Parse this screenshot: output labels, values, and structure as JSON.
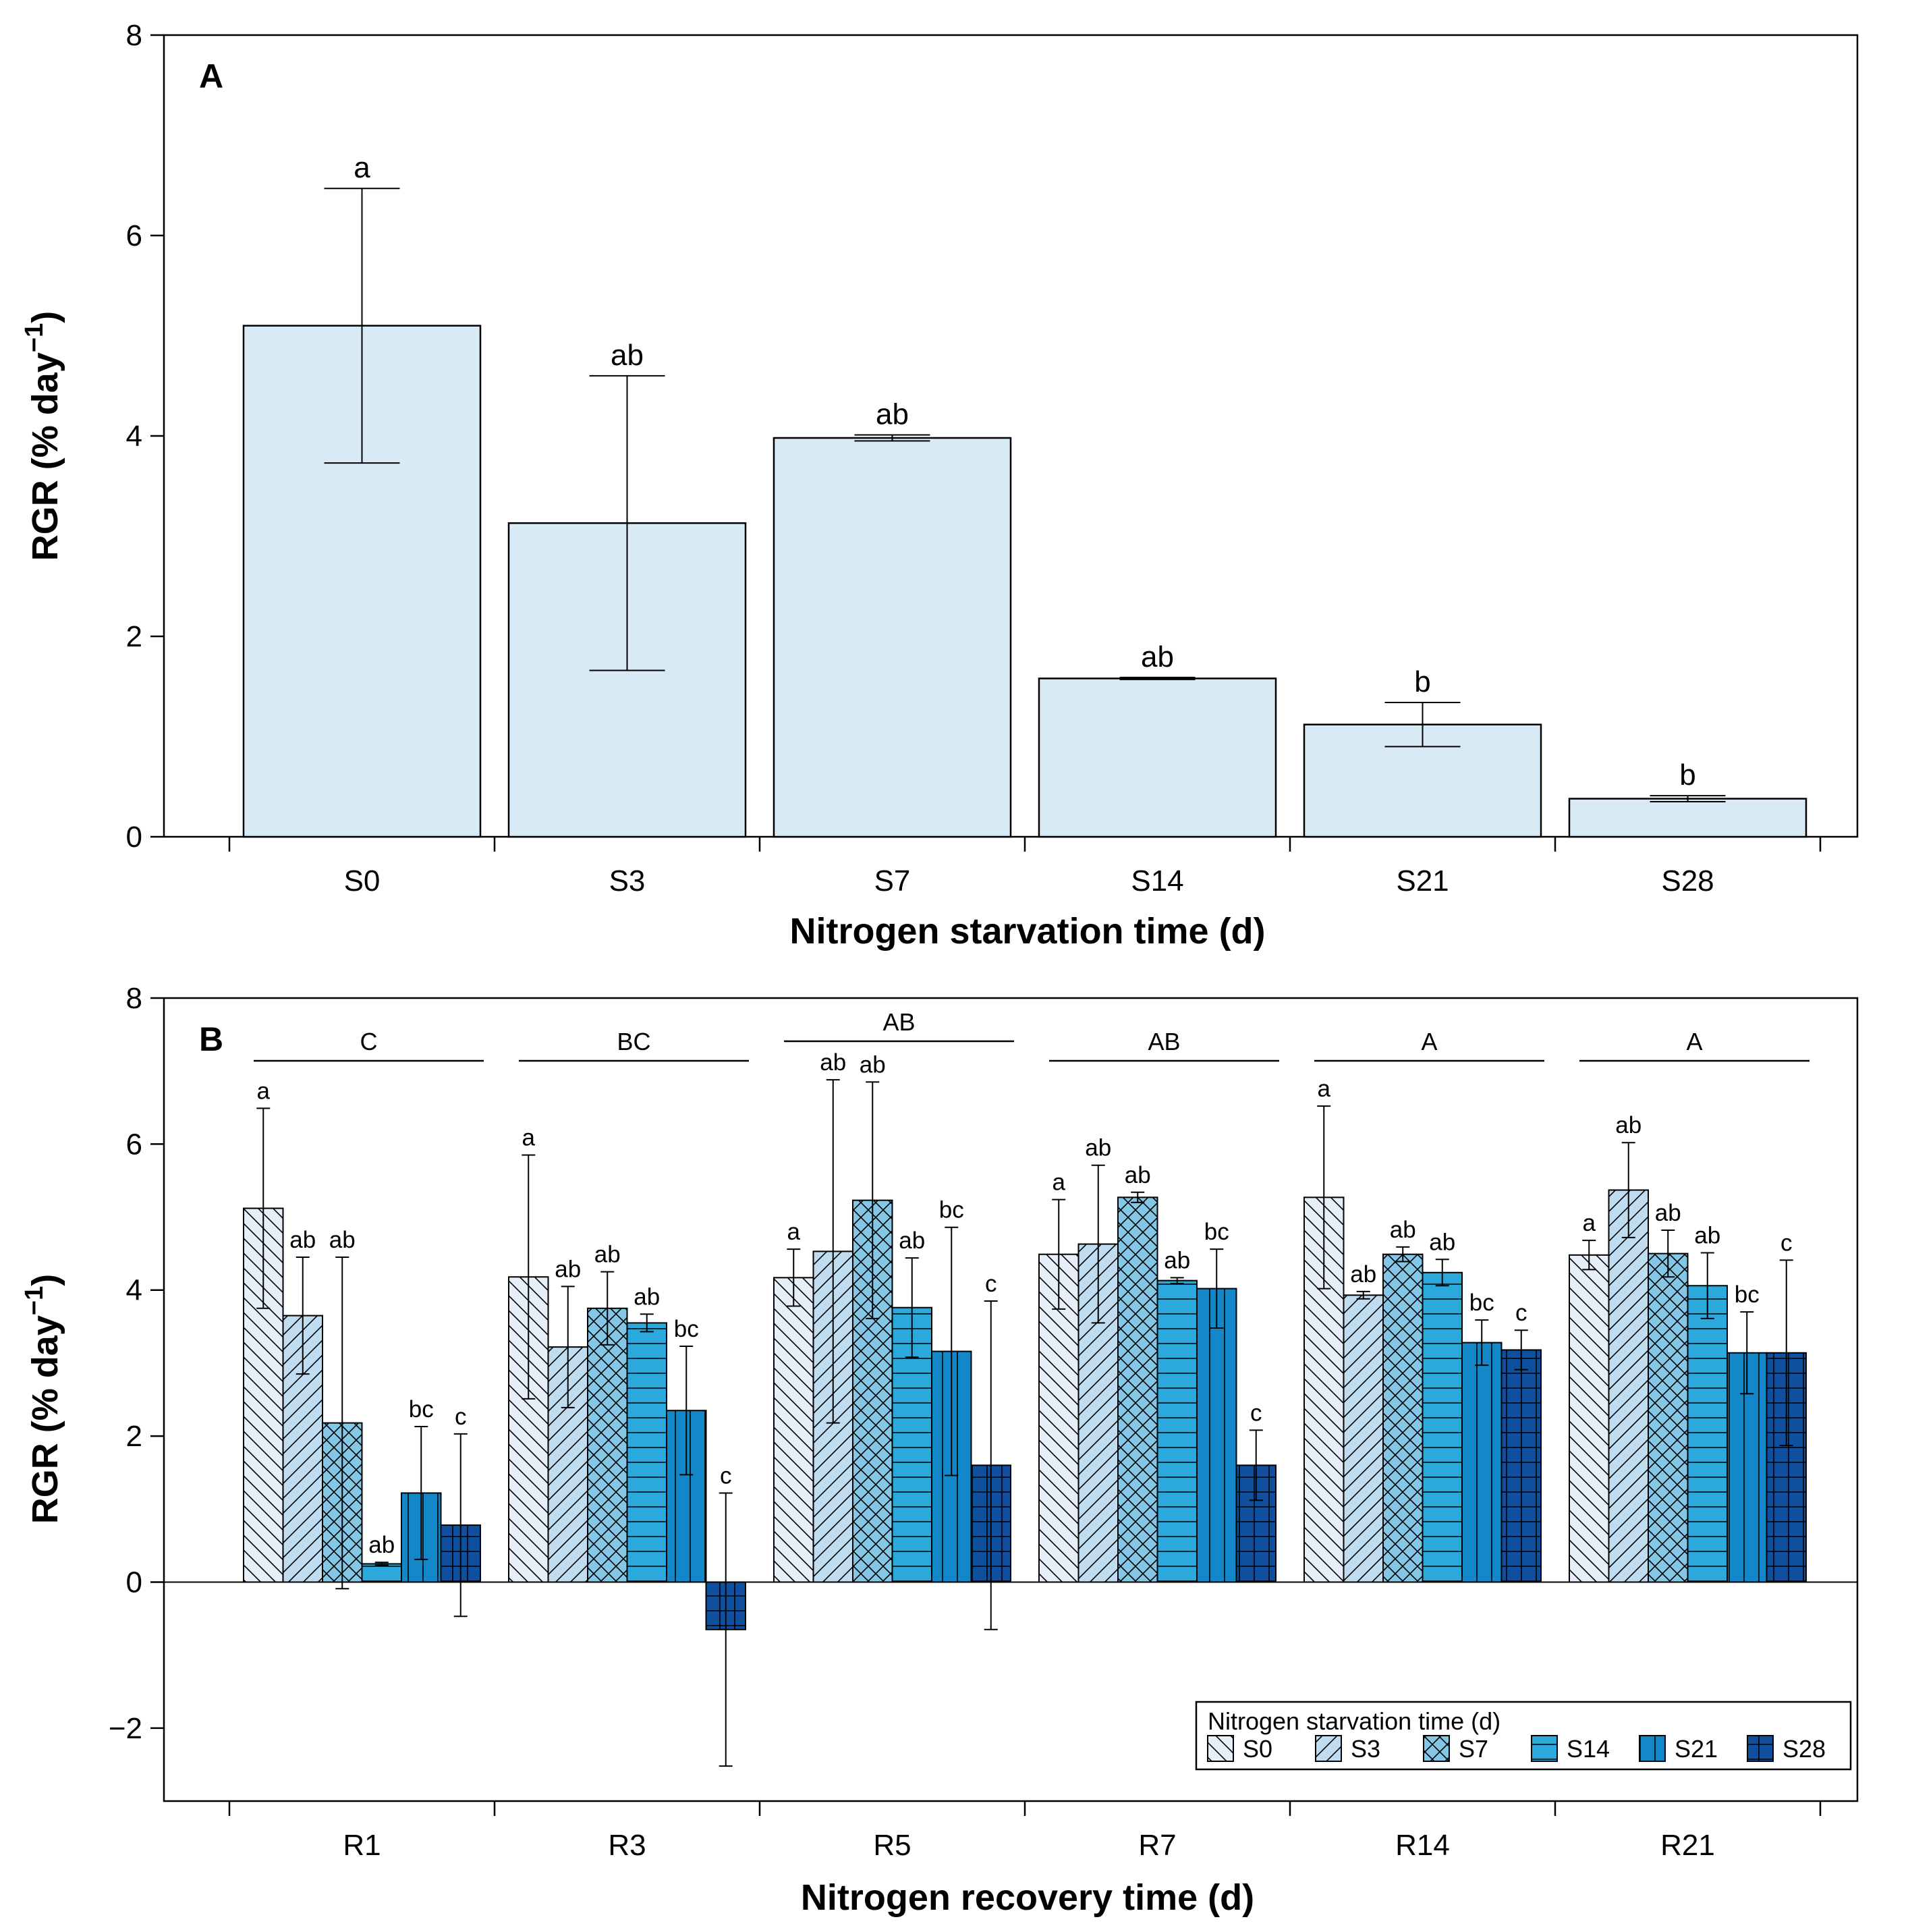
{
  "chart_data": [
    {
      "type": "bar",
      "panel_label": "A",
      "categories": [
        "S0",
        "S3",
        "S7",
        "S14",
        "S21",
        "S28"
      ],
      "values": [
        5.1,
        3.13,
        3.98,
        1.58,
        1.12,
        0.38
      ],
      "errors": [
        1.37,
        1.47,
        0.03,
        0.01,
        0.22,
        0.03
      ],
      "significance": [
        "a",
        "ab",
        "ab",
        "ab",
        "b",
        "b"
      ],
      "xlabel": "Nitrogen starvation time (d)",
      "ylabel": "RGR (% day",
      "ylabel_sup": "−1",
      "ylabel_end": ")",
      "ylim": [
        0,
        8
      ],
      "yticks": [
        "0",
        "2",
        "4",
        "6",
        "8"
      ],
      "bar_color": "#d9eaf7"
    },
    {
      "type": "bar",
      "panel_label": "B",
      "categories": [
        "R1",
        "R3",
        "R5",
        "R7",
        "R14",
        "R21"
      ],
      "group_significance": [
        "C",
        "BC",
        "AB",
        "AB",
        "A",
        "A"
      ],
      "series": [
        {
          "name": "S0",
          "color": "#e6eff9",
          "pattern": "backslash",
          "values": [
            5.12,
            4.18,
            4.17,
            4.49,
            5.27,
            4.48
          ],
          "errors": [
            1.37,
            1.67,
            0.39,
            0.75,
            1.25,
            0.2
          ],
          "significance": [
            "a",
            "a",
            "a",
            "a",
            "a",
            "a"
          ]
        },
        {
          "name": "S3",
          "color": "#bfdcf0",
          "pattern": "slash",
          "values": [
            3.65,
            3.22,
            4.53,
            4.63,
            3.93,
            5.37
          ],
          "errors": [
            0.8,
            0.83,
            2.35,
            1.08,
            0.05,
            0.65
          ],
          "significance": [
            "ab",
            "ab",
            "ab",
            "ab",
            "ab",
            "ab"
          ]
        },
        {
          "name": "S7",
          "color": "#84c6e6",
          "pattern": "cross",
          "values": [
            2.18,
            3.75,
            5.23,
            5.27,
            4.49,
            4.5
          ],
          "errors": [
            2.27,
            0.5,
            1.62,
            0.07,
            0.1,
            0.32
          ],
          "significance": [
            "ab",
            "ab",
            "ab",
            "ab",
            "ab",
            "ab"
          ]
        },
        {
          "name": "S14",
          "color": "#2ba8dc",
          "pattern": "hline",
          "values": [
            0.25,
            3.55,
            3.76,
            4.13,
            4.24,
            4.06
          ],
          "errors": [
            0.02,
            0.12,
            0.68,
            0.04,
            0.18,
            0.45
          ],
          "significance": [
            "ab",
            "ab",
            "ab",
            "ab",
            "ab",
            "ab"
          ]
        },
        {
          "name": "S21",
          "color": "#1487c8",
          "pattern": "vline",
          "values": [
            1.22,
            2.35,
            3.16,
            4.02,
            3.28,
            3.14
          ],
          "errors": [
            0.91,
            0.88,
            1.7,
            0.54,
            0.31,
            0.56
          ],
          "significance": [
            "bc",
            "bc",
            "bc",
            "bc",
            "bc",
            "bc"
          ]
        },
        {
          "name": "S28",
          "color": "#0e4f9e",
          "pattern": "grid",
          "values": [
            0.78,
            -0.65,
            1.6,
            1.6,
            3.18,
            3.14
          ],
          "errors": [
            1.25,
            1.87,
            2.25,
            0.48,
            0.27,
            1.27
          ],
          "significance": [
            "c",
            "c",
            "c",
            "c",
            "c",
            "c"
          ]
        }
      ],
      "xlabel": "Nitrogen recovery time (d)",
      "ylabel": "RGR (% day",
      "ylabel_sup": "−1",
      "ylabel_end": ")",
      "ylim": [
        -3,
        8
      ],
      "yticks": [
        "−2",
        "0",
        "2",
        "4",
        "6",
        "8"
      ],
      "legend_title": "Nitrogen starvation time (d)",
      "legend_position": "bottom-right"
    }
  ]
}
